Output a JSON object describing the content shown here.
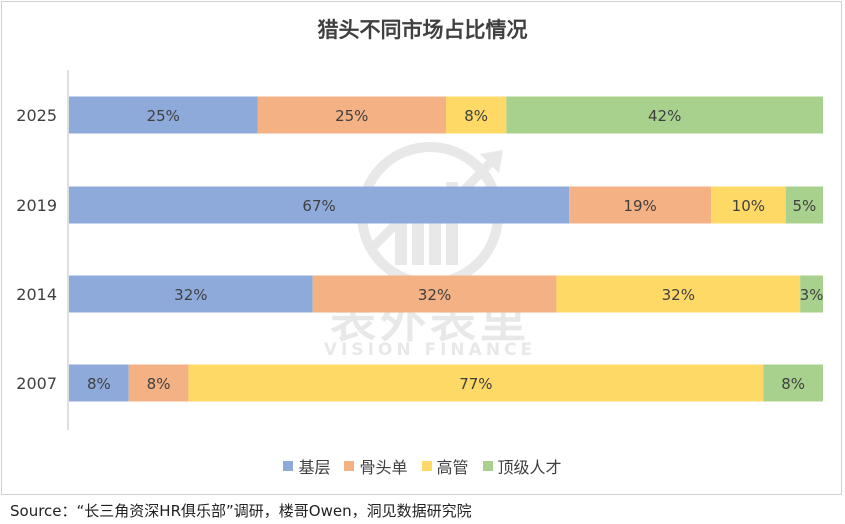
{
  "chart_data": {
    "type": "bar",
    "orientation": "horizontal",
    "stacked": "percent",
    "title": "猎头不同市场占比情况",
    "categories": [
      "2025",
      "2019",
      "2014",
      "2007"
    ],
    "series": [
      {
        "name": "基层",
        "color": "#8eaadb",
        "values": [
          25,
          67,
          32,
          8
        ],
        "labels": [
          "25%",
          "67%",
          "32%",
          "8%"
        ]
      },
      {
        "name": "骨头单",
        "color": "#f4b183",
        "values": [
          25,
          19,
          32,
          8
        ],
        "labels": [
          "25%",
          "19%",
          "32%",
          "8%"
        ]
      },
      {
        "name": "高管",
        "color": "#ffd966",
        "values": [
          8,
          10,
          32,
          77
        ],
        "labels": [
          "8%",
          "10%",
          "32%",
          "77%"
        ]
      },
      {
        "name": "顶级人才",
        "color": "#a9d18e",
        "values": [
          42,
          5,
          3,
          8
        ],
        "labels": [
          "42%",
          "5%",
          "3%",
          "8%"
        ]
      }
    ],
    "legend_position": "bottom",
    "grid": false
  },
  "source": "Source：“长三角资深HR俱乐部”调研，楼哥Owen，洞见数据研究院",
  "watermark": {
    "cn": "表外表里",
    "en": "VISION FINANCE"
  }
}
